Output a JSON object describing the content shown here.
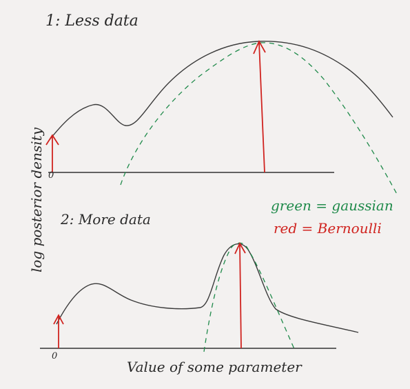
{
  "panel1": {
    "title": "1: Less data"
  },
  "panel2": {
    "title": "2: More data"
  },
  "legend": {
    "green": "green = gaussian",
    "red": "red = Bernoulli"
  },
  "axes": {
    "xlabel": "Value of some parameter",
    "ylabel": "log posterior density",
    "zero": "0"
  },
  "colors": {
    "curve": "#3a3a3a",
    "gaussian": "#1f8a4a",
    "arrow": "#d0231f",
    "paper": "#f3f1f0"
  }
}
